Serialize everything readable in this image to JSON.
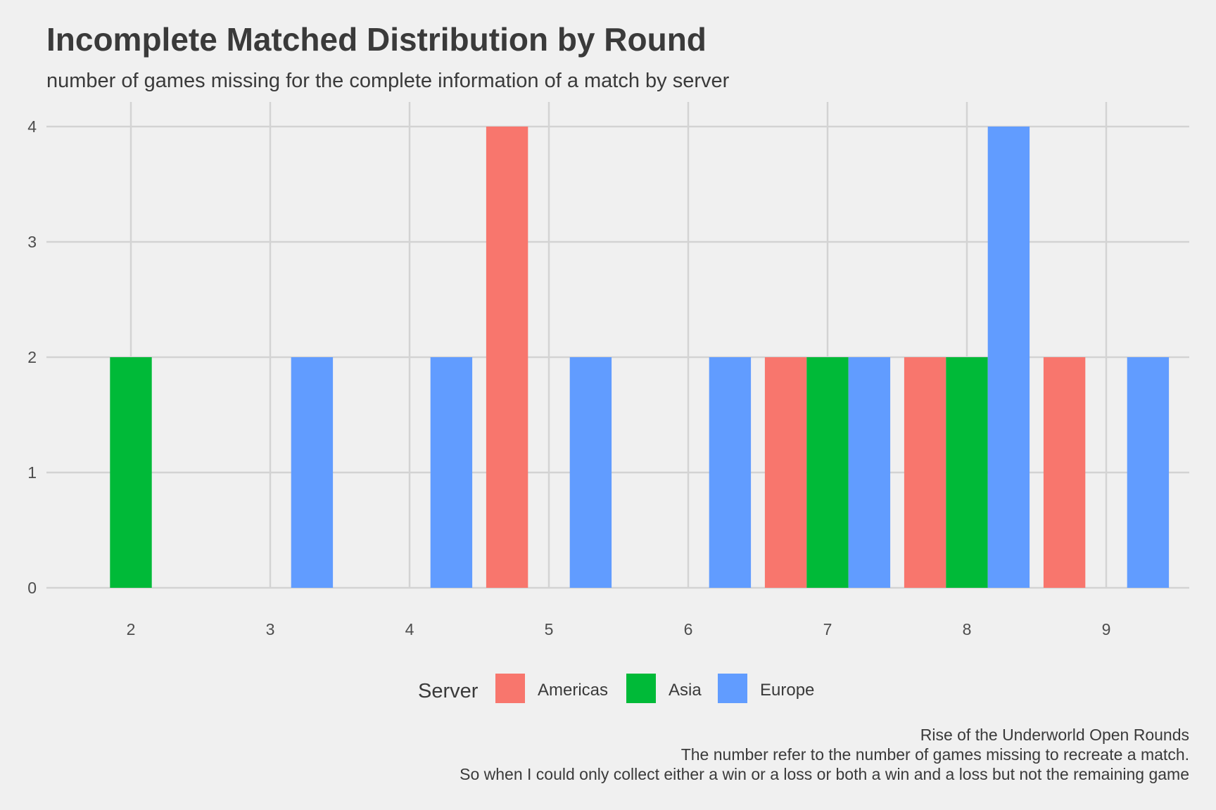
{
  "chart_data": {
    "type": "bar",
    "title": "Incomplete Matched Distribution by Round",
    "subtitle": "number of games missing for the complete information of a match by server",
    "xlabel": "",
    "ylabel": "",
    "x_ticks": [
      2,
      3,
      4,
      5,
      6,
      7,
      8,
      9
    ],
    "y_ticks": [
      0,
      1,
      2,
      3,
      4
    ],
    "xlim": [
      1.5,
      9.6
    ],
    "ylim": [
      0,
      4.2
    ],
    "grid": true,
    "legend": {
      "title": "Server",
      "position": "bottom"
    },
    "bin_width": 0.3,
    "series": [
      {
        "name": "Americas",
        "color": "#F8766D",
        "bars": [
          {
            "x": 4.7,
            "value": 4
          },
          {
            "x": 6.7,
            "value": 2
          },
          {
            "x": 7.7,
            "value": 2
          },
          {
            "x": 8.7,
            "value": 2
          }
        ]
      },
      {
        "name": "Asia",
        "color": "#00BA38",
        "bars": [
          {
            "x": 2.0,
            "value": 2
          },
          {
            "x": 7.0,
            "value": 2
          },
          {
            "x": 8.0,
            "value": 2
          }
        ]
      },
      {
        "name": "Europe",
        "color": "#619CFF",
        "bars": [
          {
            "x": 3.3,
            "value": 2
          },
          {
            "x": 4.3,
            "value": 2
          },
          {
            "x": 5.3,
            "value": 2
          },
          {
            "x": 6.3,
            "value": 2
          },
          {
            "x": 7.3,
            "value": 2
          },
          {
            "x": 8.3,
            "value": 4
          },
          {
            "x": 9.3,
            "value": 2
          }
        ]
      }
    ],
    "caption": [
      "Rise of the Underworld Open Rounds",
      "The number refer to the number of games missing to recreate a match.",
      "So when I could only collect either a win or a loss or both a win and a loss but not the remaining game"
    ]
  }
}
